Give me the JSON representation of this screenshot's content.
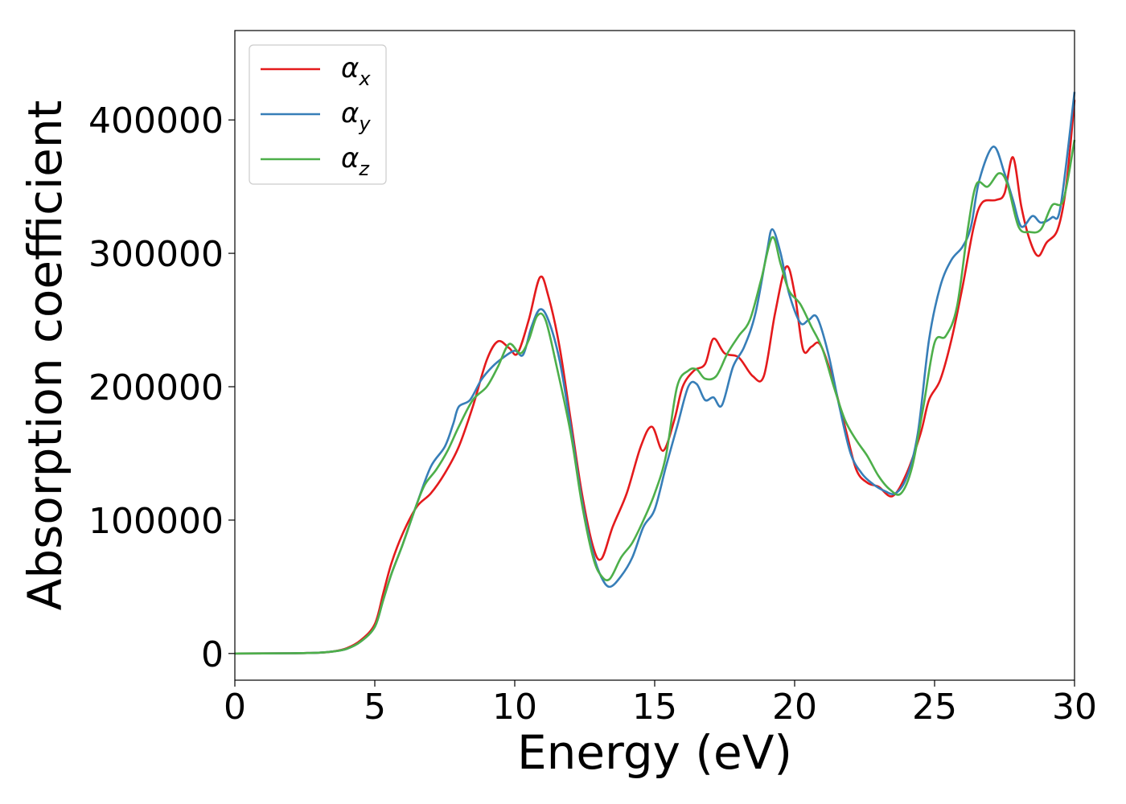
{
  "chart_data": {
    "type": "line",
    "title": "",
    "xlabel": "Energy (eV)",
    "ylabel": "Absorption coefficient",
    "xlim": [
      0,
      30
    ],
    "ylim": [
      -20000,
      467000
    ],
    "xticks": [
      0,
      5,
      10,
      15,
      20,
      25,
      30
    ],
    "yticks": [
      0,
      100000,
      200000,
      300000,
      400000
    ],
    "grid": false,
    "legend_position": "top-left",
    "series": [
      {
        "name": "αx",
        "label_base": "α",
        "label_sub": "x",
        "color": "#e41a1c",
        "points": [
          [
            0,
            0
          ],
          [
            2,
            200
          ],
          [
            3,
            600
          ],
          [
            3.5,
            1500
          ],
          [
            4,
            4000
          ],
          [
            4.5,
            10000
          ],
          [
            5,
            22000
          ],
          [
            5.3,
            45000
          ],
          [
            5.6,
            68000
          ],
          [
            6,
            90000
          ],
          [
            6.5,
            110000
          ],
          [
            7,
            120000
          ],
          [
            7.5,
            135000
          ],
          [
            8,
            155000
          ],
          [
            8.5,
            185000
          ],
          [
            9,
            220000
          ],
          [
            9.4,
            234000
          ],
          [
            9.8,
            229000
          ],
          [
            10.1,
            225000
          ],
          [
            10.5,
            250000
          ],
          [
            10.9,
            282000
          ],
          [
            11.2,
            268000
          ],
          [
            11.6,
            230000
          ],
          [
            12,
            175000
          ],
          [
            12.4,
            120000
          ],
          [
            12.8,
            80000
          ],
          [
            13.1,
            71000
          ],
          [
            13.5,
            95000
          ],
          [
            14,
            120000
          ],
          [
            14.5,
            155000
          ],
          [
            14.9,
            170000
          ],
          [
            15.3,
            152000
          ],
          [
            15.7,
            175000
          ],
          [
            16,
            200000
          ],
          [
            16.4,
            212000
          ],
          [
            16.8,
            217000
          ],
          [
            17.1,
            236000
          ],
          [
            17.5,
            225000
          ],
          [
            18,
            222000
          ],
          [
            18.5,
            208000
          ],
          [
            18.9,
            208000
          ],
          [
            19.3,
            255000
          ],
          [
            19.7,
            290000
          ],
          [
            20,
            270000
          ],
          [
            20.3,
            228000
          ],
          [
            20.6,
            230000
          ],
          [
            20.9,
            232000
          ],
          [
            21.3,
            210000
          ],
          [
            21.8,
            170000
          ],
          [
            22.2,
            138000
          ],
          [
            22.6,
            128000
          ],
          [
            23,
            125000
          ],
          [
            23.5,
            118000
          ],
          [
            24,
            135000
          ],
          [
            24.5,
            165000
          ],
          [
            24.8,
            190000
          ],
          [
            25.2,
            205000
          ],
          [
            25.6,
            235000
          ],
          [
            26,
            275000
          ],
          [
            26.4,
            320000
          ],
          [
            26.7,
            338000
          ],
          [
            27.2,
            340000
          ],
          [
            27.5,
            345000
          ],
          [
            27.8,
            372000
          ],
          [
            28.1,
            335000
          ],
          [
            28.4,
            310000
          ],
          [
            28.7,
            298000
          ],
          [
            29,
            308000
          ],
          [
            29.4,
            318000
          ],
          [
            29.7,
            350000
          ],
          [
            30,
            415000
          ]
        ]
      },
      {
        "name": "αy",
        "label_base": "α",
        "label_sub": "y",
        "color": "#377eb8",
        "points": [
          [
            0,
            0
          ],
          [
            2,
            200
          ],
          [
            3,
            600
          ],
          [
            3.5,
            1500
          ],
          [
            4,
            3500
          ],
          [
            4.5,
            9000
          ],
          [
            5,
            20000
          ],
          [
            5.3,
            40000
          ],
          [
            5.6,
            60000
          ],
          [
            6,
            82000
          ],
          [
            6.5,
            112000
          ],
          [
            7,
            140000
          ],
          [
            7.5,
            155000
          ],
          [
            7.8,
            172000
          ],
          [
            8,
            185000
          ],
          [
            8.4,
            190000
          ],
          [
            8.8,
            205000
          ],
          [
            9.2,
            215000
          ],
          [
            9.6,
            222000
          ],
          [
            10,
            227000
          ],
          [
            10.3,
            224000
          ],
          [
            10.6,
            245000
          ],
          [
            10.9,
            258000
          ],
          [
            11.2,
            250000
          ],
          [
            11.6,
            220000
          ],
          [
            12,
            170000
          ],
          [
            12.4,
            115000
          ],
          [
            12.8,
            75000
          ],
          [
            13.1,
            57000
          ],
          [
            13.4,
            50000
          ],
          [
            13.8,
            58000
          ],
          [
            14.2,
            72000
          ],
          [
            14.6,
            95000
          ],
          [
            15,
            108000
          ],
          [
            15.4,
            140000
          ],
          [
            15.8,
            170000
          ],
          [
            16.2,
            200000
          ],
          [
            16.5,
            202000
          ],
          [
            16.8,
            190000
          ],
          [
            17.1,
            192000
          ],
          [
            17.4,
            186000
          ],
          [
            17.8,
            215000
          ],
          [
            18.2,
            230000
          ],
          [
            18.6,
            255000
          ],
          [
            19,
            300000
          ],
          [
            19.2,
            318000
          ],
          [
            19.5,
            300000
          ],
          [
            19.8,
            270000
          ],
          [
            20.2,
            248000
          ],
          [
            20.5,
            250000
          ],
          [
            20.8,
            252000
          ],
          [
            21.2,
            225000
          ],
          [
            21.6,
            185000
          ],
          [
            22,
            150000
          ],
          [
            22.4,
            135000
          ],
          [
            22.8,
            127000
          ],
          [
            23.2,
            122000
          ],
          [
            23.6,
            120000
          ],
          [
            24,
            132000
          ],
          [
            24.4,
            165000
          ],
          [
            24.8,
            235000
          ],
          [
            25.2,
            275000
          ],
          [
            25.6,
            295000
          ],
          [
            26,
            305000
          ],
          [
            26.3,
            320000
          ],
          [
            26.6,
            355000
          ],
          [
            27.1,
            380000
          ],
          [
            27.5,
            360000
          ],
          [
            27.8,
            340000
          ],
          [
            28.1,
            320000
          ],
          [
            28.5,
            328000
          ],
          [
            28.8,
            323000
          ],
          [
            29.2,
            327000
          ],
          [
            29.5,
            335000
          ],
          [
            30,
            421000
          ]
        ]
      },
      {
        "name": "αz",
        "label_base": "α",
        "label_sub": "z",
        "color": "#4daf4a",
        "points": [
          [
            0,
            0
          ],
          [
            2,
            200
          ],
          [
            3,
            600
          ],
          [
            3.5,
            1500
          ],
          [
            4,
            3500
          ],
          [
            4.5,
            9000
          ],
          [
            5,
            20000
          ],
          [
            5.3,
            40000
          ],
          [
            5.6,
            60000
          ],
          [
            6,
            82000
          ],
          [
            6.5,
            112000
          ],
          [
            6.8,
            127000
          ],
          [
            7.2,
            138000
          ],
          [
            7.6,
            152000
          ],
          [
            8,
            170000
          ],
          [
            8.5,
            190000
          ],
          [
            9,
            200000
          ],
          [
            9.4,
            215000
          ],
          [
            9.8,
            232000
          ],
          [
            10.2,
            225000
          ],
          [
            10.5,
            235000
          ],
          [
            10.8,
            253000
          ],
          [
            11.1,
            250000
          ],
          [
            11.5,
            215000
          ],
          [
            12,
            165000
          ],
          [
            12.4,
            112000
          ],
          [
            12.8,
            72000
          ],
          [
            13.1,
            58000
          ],
          [
            13.4,
            56000
          ],
          [
            13.8,
            72000
          ],
          [
            14.2,
            83000
          ],
          [
            14.6,
            100000
          ],
          [
            15,
            120000
          ],
          [
            15.4,
            148000
          ],
          [
            15.8,
            200000
          ],
          [
            16.2,
            212000
          ],
          [
            16.5,
            213000
          ],
          [
            16.8,
            206000
          ],
          [
            17.2,
            208000
          ],
          [
            17.6,
            225000
          ],
          [
            18,
            238000
          ],
          [
            18.4,
            250000
          ],
          [
            18.8,
            280000
          ],
          [
            19.2,
            312000
          ],
          [
            19.5,
            292000
          ],
          [
            19.8,
            272000
          ],
          [
            20.2,
            262000
          ],
          [
            20.6,
            245000
          ],
          [
            21,
            228000
          ],
          [
            21.4,
            200000
          ],
          [
            21.8,
            175000
          ],
          [
            22.2,
            160000
          ],
          [
            22.6,
            148000
          ],
          [
            23,
            133000
          ],
          [
            23.4,
            123000
          ],
          [
            23.8,
            120000
          ],
          [
            24.2,
            140000
          ],
          [
            24.6,
            185000
          ],
          [
            25,
            233000
          ],
          [
            25.4,
            238000
          ],
          [
            25.8,
            260000
          ],
          [
            26.2,
            320000
          ],
          [
            26.5,
            352000
          ],
          [
            26.9,
            350000
          ],
          [
            27.3,
            360000
          ],
          [
            27.6,
            352000
          ],
          [
            28,
            320000
          ],
          [
            28.4,
            316000
          ],
          [
            28.8,
            318000
          ],
          [
            29.2,
            336000
          ],
          [
            29.6,
            340000
          ],
          [
            30,
            385000
          ]
        ]
      }
    ]
  }
}
